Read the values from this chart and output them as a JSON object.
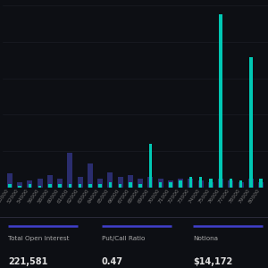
{
  "background_color": "#0d0f14",
  "chart_bg": "#0d0f14",
  "grid_color": "#1a1d24",
  "tick_color": "#777777",
  "bar_color_call": "#00c8b4",
  "bar_color_put": "#2a2d6e",
  "footer_bg": "#13151c",
  "footer_line_color": "#4040cc",
  "footer_items": [
    {
      "label": "Total Open Interest",
      "value": "221,581"
    },
    {
      "label": "Put/Call Ratio",
      "value": "0.47"
    },
    {
      "label": "Notiona",
      "value": "$14,172"
    }
  ],
  "x_labels": [
    "50000",
    "52000",
    "54000",
    "56000",
    "58000",
    "60000",
    "61000",
    "62000",
    "63000",
    "64000",
    "65000",
    "66000",
    "67000",
    "68000",
    "69000",
    "70000",
    "71000",
    "72000",
    "73000",
    "74000",
    "75000",
    "76000",
    "77000",
    "78000",
    "79000",
    "80000"
  ],
  "calls": [
    2,
    1,
    2,
    1,
    2,
    2,
    2,
    2,
    2,
    2,
    3,
    2,
    3,
    2,
    25,
    3,
    3,
    4,
    6,
    6,
    5,
    100,
    5,
    4,
    75,
    5
  ],
  "puts": [
    8,
    3,
    4,
    5,
    7,
    5,
    20,
    6,
    14,
    5,
    9,
    6,
    7,
    5,
    6,
    5,
    4,
    5,
    5,
    4,
    3,
    5,
    4,
    3,
    5,
    3
  ],
  "ylim": [
    0,
    105
  ],
  "n_gridlines": 5
}
